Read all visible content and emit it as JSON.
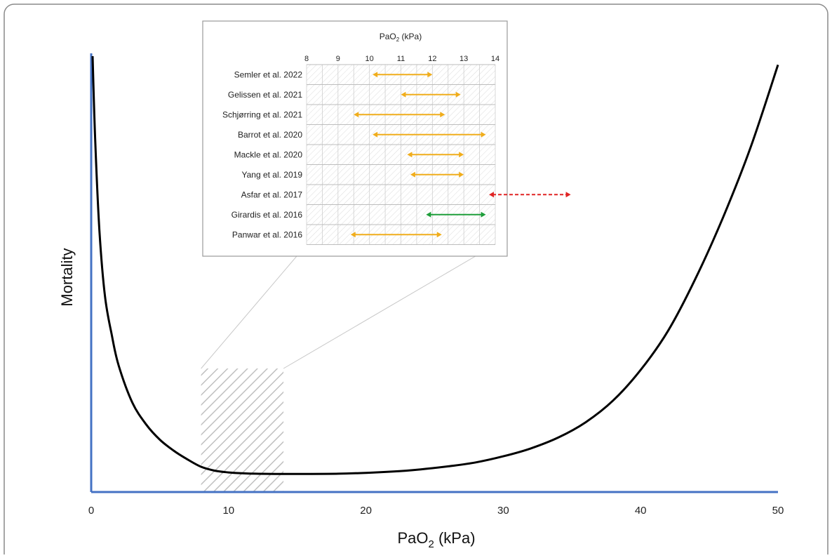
{
  "chart_data": [
    {
      "type": "line",
      "title": "",
      "xlabel": "PaO",
      "xlabel_sub": "2",
      "xlabel_unit": " (kPa)",
      "ylabel": "Mortality",
      "xlim": [
        0,
        50
      ],
      "x_ticks": [
        "0",
        "10",
        "20",
        "30",
        "40",
        "50"
      ],
      "grid": false,
      "series": [
        {
          "x": [
            0.1,
            0.3,
            0.6,
            1,
            1.5,
            2,
            3,
            4,
            5,
            6,
            7,
            8,
            9,
            10,
            11,
            12,
            14,
            16,
            18,
            20,
            22,
            24,
            26,
            28,
            30,
            32,
            34,
            36,
            38,
            40,
            42,
            44,
            46,
            48,
            50
          ],
          "y": [
            1.0,
            0.8,
            0.6,
            0.45,
            0.36,
            0.29,
            0.205,
            0.155,
            0.12,
            0.095,
            0.075,
            0.058,
            0.049,
            0.045,
            0.043,
            0.042,
            0.0415,
            0.0415,
            0.042,
            0.044,
            0.047,
            0.052,
            0.059,
            0.068,
            0.082,
            0.1,
            0.125,
            0.16,
            0.21,
            0.28,
            0.37,
            0.49,
            0.63,
            0.79,
            0.98
          ]
        }
      ],
      "highlight_region": [
        8,
        14
      ],
      "colors": {
        "curve": "#000000",
        "axes": "#4472c4",
        "hatch": "#c0c0c0"
      }
    },
    {
      "type": "bar",
      "title": "PaO",
      "title_sub": "2",
      "title_unit": " (kPa)",
      "xlim": [
        8,
        14
      ],
      "x_ticks": [
        "8",
        "9",
        "10",
        "11",
        "12",
        "13",
        "14"
      ],
      "grid": true,
      "studies": [
        {
          "label": "Semler et al. 2022",
          "from": 10.1,
          "to": 12.0,
          "color": "orange",
          "dashed": false
        },
        {
          "label": "Gelissen et al. 2021",
          "from": 11.0,
          "to": 12.9,
          "color": "orange",
          "dashed": false
        },
        {
          "label": "Schjørring et al. 2021",
          "from": 9.5,
          "to": 12.4,
          "color": "orange",
          "dashed": false
        },
        {
          "label": "Barrot et al. 2020",
          "from": 10.1,
          "to": 13.7,
          "color": "orange",
          "dashed": false
        },
        {
          "label": "Mackle et al. 2020",
          "from": 11.2,
          "to": 13.0,
          "color": "orange",
          "dashed": false
        },
        {
          "label": "Yang et al. 2019",
          "from": 11.3,
          "to": 13.0,
          "color": "orange",
          "dashed": false
        },
        {
          "label": "Asfar et al. 2017",
          "from": 13.8,
          "to": 16.4,
          "color": "red",
          "dashed": true
        },
        {
          "label": "Girardis et al. 2016",
          "from": 11.8,
          "to": 13.7,
          "color": "green",
          "dashed": false
        },
        {
          "label": "Panwar et al. 2016",
          "from": 9.4,
          "to": 12.3,
          "color": "orange",
          "dashed": false
        }
      ],
      "colors": {
        "orange": "#f0ad1c",
        "red": "#e02424",
        "green": "#1e9e3a"
      }
    }
  ]
}
